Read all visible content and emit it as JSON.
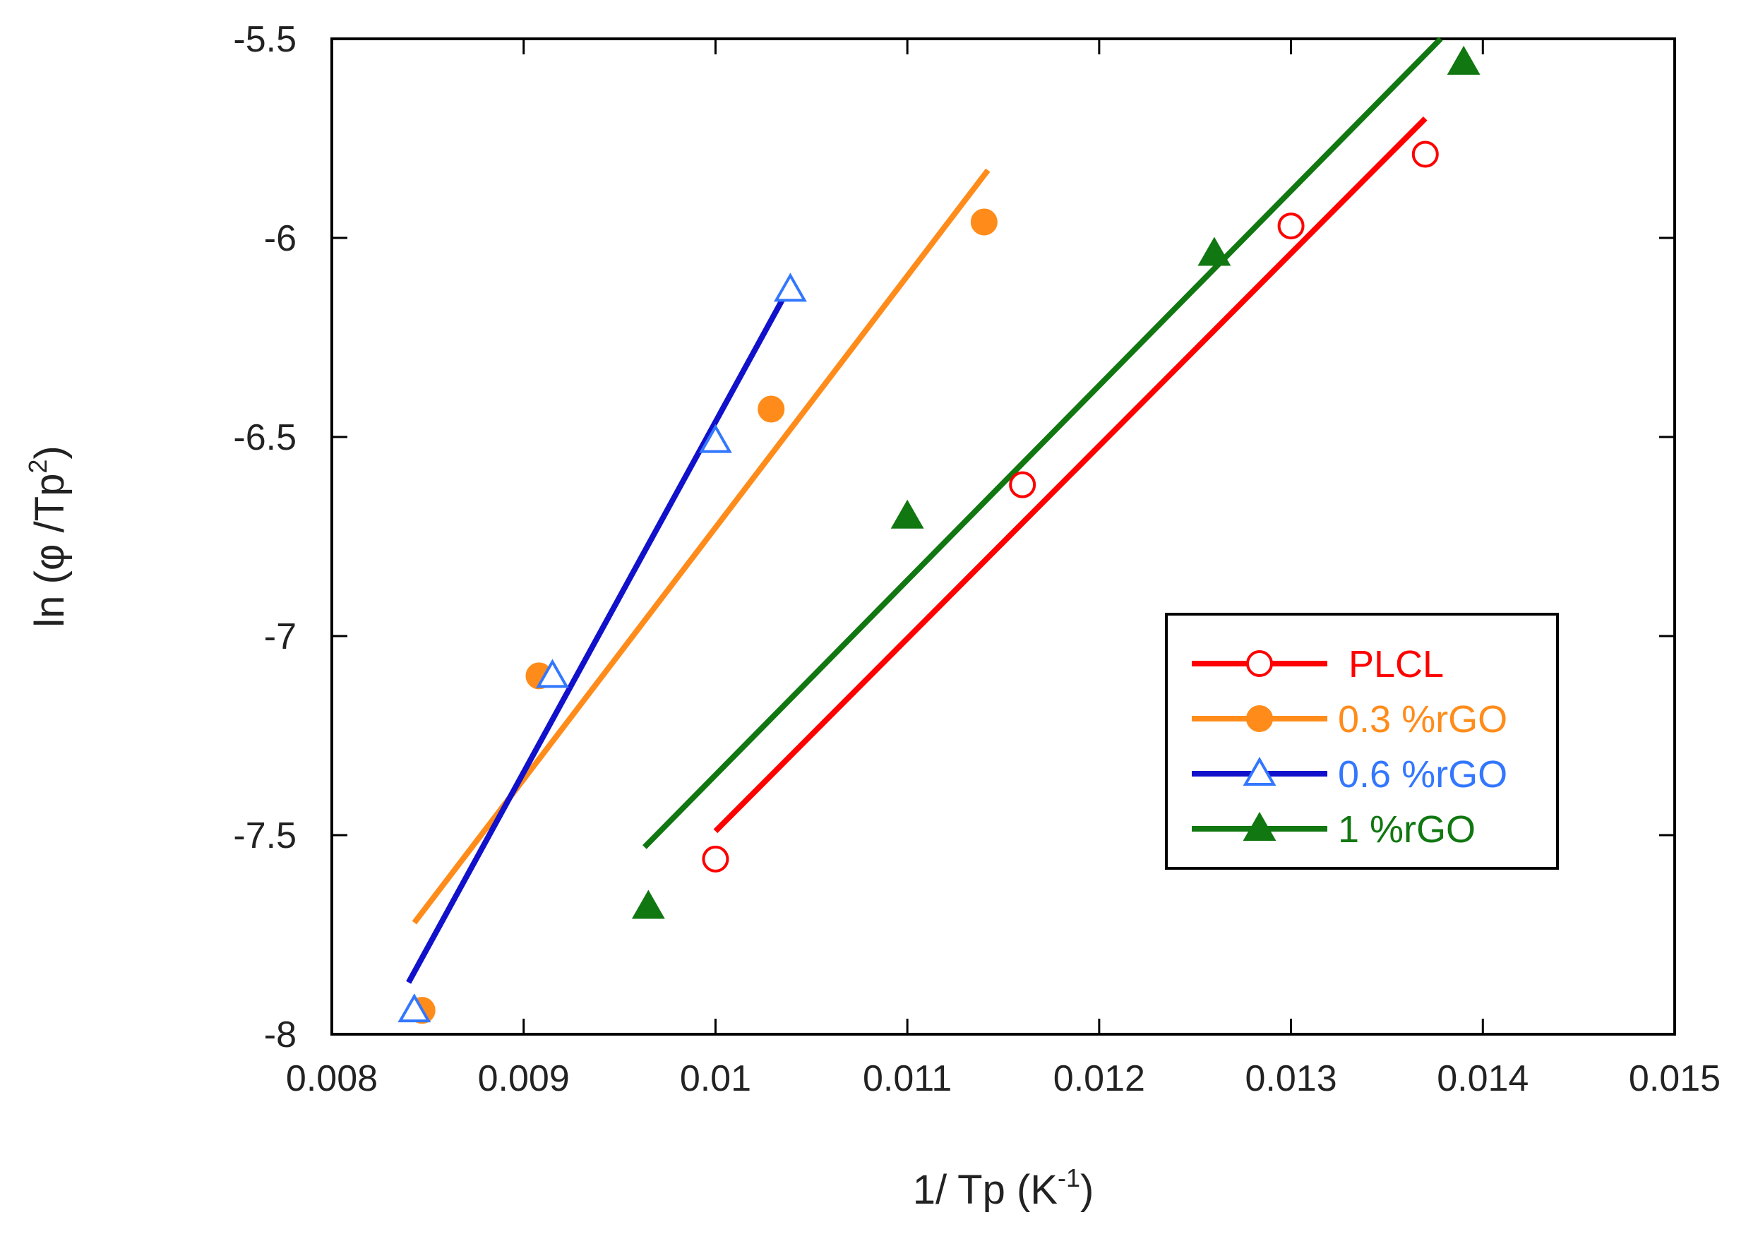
{
  "chart_data": {
    "type": "scatter",
    "title": "",
    "xlabel": {
      "main": "1/ Tp (K",
      "sup": "-1",
      "end": ")"
    },
    "ylabel": {
      "main": "ln (φ /Tp",
      "sup": "2",
      "end": ")"
    },
    "xlim": [
      0.008,
      0.015
    ],
    "ylim": [
      -8,
      -5.5
    ],
    "xticks": [
      0.008,
      0.009,
      0.01,
      0.011,
      0.012,
      0.013,
      0.014,
      0.015
    ],
    "xtick_labels": [
      "0.008",
      "0.009",
      "0.01",
      "0.011",
      "0.012",
      "0.013",
      "0.014",
      "0.015"
    ],
    "yticks": [
      -8,
      -7.5,
      -7,
      -6.5,
      -6,
      -5.5
    ],
    "ytick_labels": [
      "-8",
      "-7.5",
      "-7",
      "-6.5",
      "-6",
      "-5.5"
    ],
    "grid": false,
    "legend_position": "lower-right",
    "series": [
      {
        "name": "PLCL",
        "color": "#ff0000",
        "marker": "circle-open",
        "x": [
          0.01,
          0.0116,
          0.013,
          0.0137
        ],
        "y": [
          -7.56,
          -6.62,
          -5.97,
          -5.79
        ],
        "fit": {
          "x": [
            0.01,
            0.0137
          ],
          "y": [
            -7.49,
            -5.7
          ]
        }
      },
      {
        "name": "0.3 %rGO",
        "color": "#ff8c1a",
        "marker": "circle-filled",
        "x": [
          0.00847,
          0.00908,
          0.01029,
          0.0114
        ],
        "y": [
          -7.94,
          -7.1,
          -6.43,
          -5.96
        ],
        "fit": {
          "x": [
            0.00843,
            0.01142
          ],
          "y": [
            -7.72,
            -5.83
          ]
        }
      },
      {
        "name": "0.6 %rGO",
        "color": "#1111cc",
        "marker_color": "#3377ff",
        "marker": "triangle-open",
        "x": [
          0.00843,
          0.00915,
          0.01,
          0.01039
        ],
        "y": [
          -7.94,
          -7.1,
          -6.51,
          -6.13
        ],
        "fit": {
          "x": [
            0.0084,
            0.0104
          ],
          "y": [
            -7.87,
            -6.11
          ]
        }
      },
      {
        "name": "1 %rGO",
        "color": "#117711",
        "marker": "triangle-filled",
        "x": [
          0.00965,
          0.011,
          0.0126,
          0.0139
        ],
        "y": [
          -7.68,
          -6.7,
          -6.04,
          -5.56
        ],
        "fit": {
          "x": [
            0.00963,
            0.01378
          ],
          "y": [
            -7.53,
            -5.5
          ]
        }
      }
    ]
  }
}
